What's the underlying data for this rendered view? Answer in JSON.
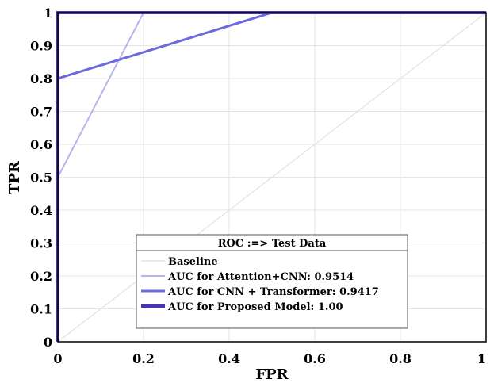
{
  "chart_data": {
    "type": "line",
    "title": "",
    "xlabel": "FPR",
    "ylabel": "TPR",
    "xlim": [
      0,
      1
    ],
    "ylim": [
      0,
      1
    ],
    "grid": true,
    "legend_placement": "bottom-center",
    "legend_title": "ROC :=> Test Data",
    "x_ticks": [
      0,
      0.2,
      0.4,
      0.6,
      0.8,
      1
    ],
    "x_tick_labels": [
      "0",
      "0.2",
      "0.4",
      "0.6",
      "0.8",
      "1"
    ],
    "y_ticks": [
      0,
      0.1,
      0.2,
      0.3,
      0.4,
      0.5,
      0.6,
      0.7,
      0.8,
      0.9,
      1
    ],
    "y_tick_labels": [
      "0",
      "0.1",
      "0.2",
      "0.3",
      "0.4",
      "0.5",
      "0.6",
      "0.7",
      "0.8",
      "0.9",
      "1"
    ],
    "series": [
      {
        "name": "Baseline",
        "color": "#e2e2e2",
        "points": [
          [
            0,
            0
          ],
          [
            1,
            1
          ]
        ]
      },
      {
        "name": "AUC for Attention+CNN: 0.9514",
        "color": "#b4b4ee",
        "points": [
          [
            0,
            0
          ],
          [
            0,
            0.5
          ],
          [
            0.2,
            1
          ],
          [
            1,
            1
          ]
        ]
      },
      {
        "name": "AUC for CNN + Transformer: 0.9417",
        "color": "#6a6ade",
        "points": [
          [
            0,
            0
          ],
          [
            0,
            0.8
          ],
          [
            0.5,
            1
          ],
          [
            1,
            1
          ]
        ]
      },
      {
        "name": "AUC for Proposed Model: 1.00",
        "color": "#4a32b4",
        "points": [
          [
            0,
            0
          ],
          [
            0,
            1
          ],
          [
            1,
            1
          ]
        ]
      }
    ]
  }
}
